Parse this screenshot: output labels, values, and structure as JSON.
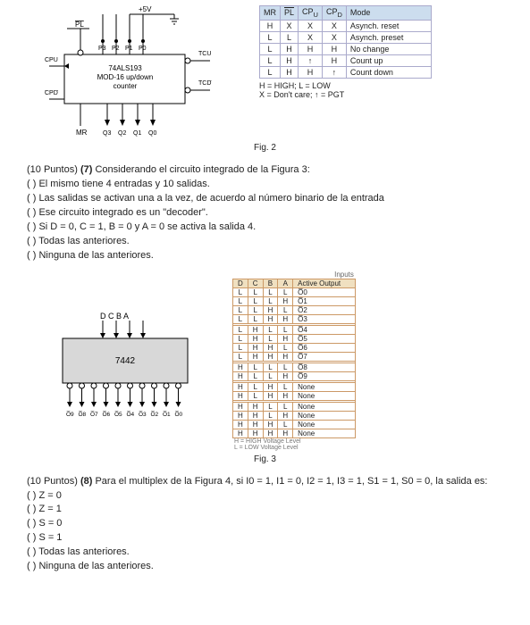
{
  "fig2": {
    "label": "Fig. 2",
    "circuit": {
      "vcc": "+5V",
      "pl_bar": "PL",
      "p_pins": [
        "P3",
        "P2",
        "P1",
        "P0"
      ],
      "tcu_bar": "TCU",
      "tcd_bar": "TCD",
      "cpu_bar": "CPU",
      "cpd_bar": "CPD",
      "chip_line1": "74ALS193",
      "chip_line2": "MOD-16 up/down",
      "chip_line3": "counter",
      "mr": "MR",
      "q_pins": [
        "Q3",
        "Q2",
        "Q1",
        "Q0"
      ]
    },
    "table": {
      "headers": [
        "MR",
        "PL",
        "CPU",
        "CPD",
        "Mode"
      ],
      "header_bars": [
        false,
        true,
        false,
        false,
        false
      ],
      "rows": [
        [
          "H",
          "X",
          "X",
          "X",
          "Asynch. reset"
        ],
        [
          "L",
          "L",
          "X",
          "X",
          "Asynch. preset"
        ],
        [
          "L",
          "H",
          "H",
          "H",
          "No change"
        ],
        [
          "L",
          "H",
          "↑",
          "H",
          "Count up"
        ],
        [
          "L",
          "H",
          "H",
          "↑",
          "Count down"
        ]
      ],
      "note1": "H = HIGH; L = LOW",
      "note2": "X = Don't care; ↑ = PGT"
    }
  },
  "q7": {
    "title_points": "(10 Puntos)",
    "title_num": "(7)",
    "title_text": "Considerando el circuito integrado de la Figura 3:",
    "opts": [
      "(   ) El mismo tiene 4 entradas y 10 salidas.",
      "(   ) Las salidas se activan una a la vez, de acuerdo al número binario de la entrada",
      "(   ) Ese circuito integrado es un \"decoder\".",
      "(   ) Si D = 0, C = 1, B = 0 y A = 0 se activa la salida 4.",
      "(   ) Todas las anteriores.",
      "(   ) Ninguna de las anteriores."
    ]
  },
  "fig3": {
    "label": "Fig. 3",
    "chip": {
      "top_pins": "D C B A",
      "name": "7442",
      "bottom_pins": [
        "O̅9",
        "O̅8",
        "O̅7",
        "O̅6",
        "O̅5",
        "O̅4",
        "O̅3",
        "O̅2",
        "O̅1",
        "O̅0"
      ]
    },
    "table": {
      "inputs_header": "Inputs",
      "input_cols": [
        "D",
        "C",
        "B",
        "A"
      ],
      "output_col": "Active Output",
      "rows": [
        [
          "L",
          "L",
          "L",
          "L",
          "O̅0"
        ],
        [
          "L",
          "L",
          "L",
          "H",
          "O̅1"
        ],
        [
          "L",
          "L",
          "H",
          "L",
          "O̅2"
        ],
        [
          "L",
          "L",
          "H",
          "H",
          "O̅3"
        ],
        [
          "L",
          "H",
          "L",
          "L",
          "O̅4"
        ],
        [
          "L",
          "H",
          "L",
          "H",
          "O̅5"
        ],
        [
          "L",
          "H",
          "H",
          "L",
          "O̅6"
        ],
        [
          "L",
          "H",
          "H",
          "H",
          "O̅7"
        ],
        [
          "H",
          "L",
          "L",
          "L",
          "O̅8"
        ],
        [
          "H",
          "L",
          "L",
          "H",
          "O̅9"
        ],
        [
          "H",
          "L",
          "H",
          "L",
          "None"
        ],
        [
          "H",
          "L",
          "H",
          "H",
          "None"
        ],
        [
          "H",
          "H",
          "L",
          "L",
          "None"
        ],
        [
          "H",
          "H",
          "L",
          "H",
          "None"
        ],
        [
          "H",
          "H",
          "H",
          "L",
          "None"
        ],
        [
          "H",
          "H",
          "H",
          "H",
          "None"
        ]
      ],
      "footnote1": "H = HIGH Voltage Level",
      "footnote2": "L = LOW Voltage Level"
    }
  },
  "q8": {
    "title_points": "(10 Puntos)",
    "title_num": "(8)",
    "title_text": "Para el multiplex de la Figura 4, si I0 = 1, I1 = 0, I2 = 1, I3 = 1, S1 = 1, S0 = 0, la salida es:",
    "opts": [
      "(   ) Z = 0",
      "(   ) Z = 1",
      "(   ) S = 0",
      "(   ) S = 1",
      "(   ) Todas las anteriores.",
      "(   ) Ninguna de las anteriores."
    ]
  }
}
